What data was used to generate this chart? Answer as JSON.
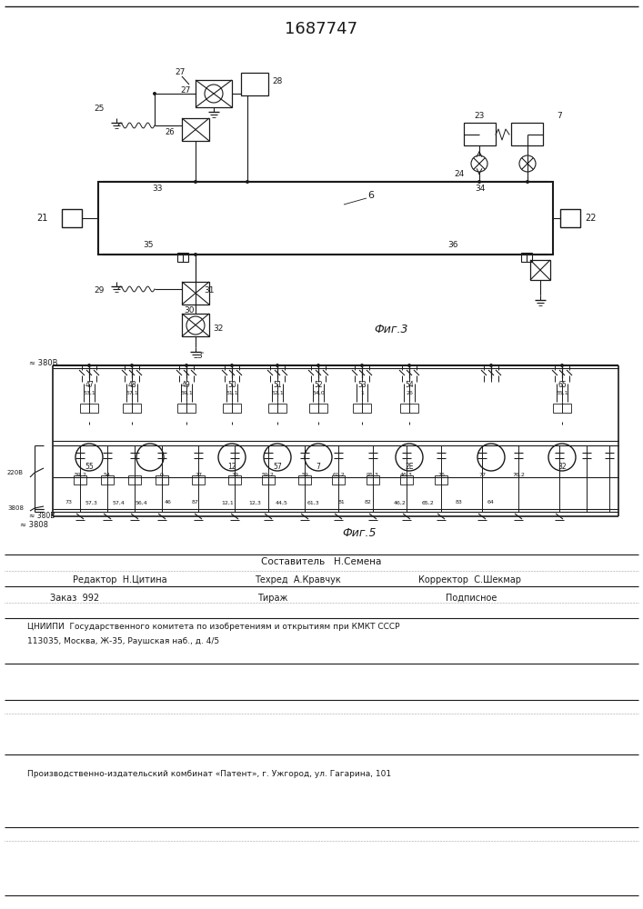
{
  "title": "1687747",
  "fig3_label": "Фиг.3",
  "fig5_label": "Фиг.5",
  "lc": "#1a1a1a",
  "tc": "#1a1a1a",
  "footer_sestavitel": "Составитель   Н.Семена",
  "footer_redaktor": "Редактор  Н.Цитина",
  "footer_tehred": "Техред  А.Кравчук",
  "footer_korrektor": "Корректор  С.Шекмар",
  "footer_zakaz": "Заказ  992",
  "footer_tirazh": "Тираж",
  "footer_podpisnoe": "Подписное",
  "footer_cniip": "ЦНИИПИ  Государственного комитета по изобретениям и открытиям при КМКТ СССР",
  "footer_addr": "113035, Москва, Ж-35, Раушская наб., д. 4/5",
  "footer_patent": "Производственно-издательский комбинат «Патент», г. Ужгород, ул. Гагарина, 101"
}
